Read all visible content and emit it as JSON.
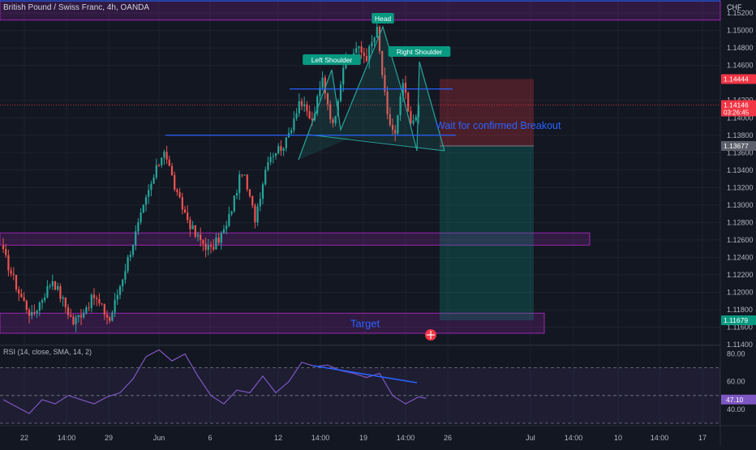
{
  "header": {
    "symbol": "British Pound / Swiss Franc, 4h, OANDA",
    "currency": "CHF",
    "rsi_label": "RSI (14, close, SMA, 14, 2)"
  },
  "colors": {
    "background": "#131722",
    "up": "#26a69a",
    "down": "#ef5350",
    "zone": "#9c27b0",
    "trendline": "#2962ff",
    "rsi": "#7e57c2",
    "pattern": "#26a69a",
    "stop_zone": "#f23645",
    "target_zone": "#089981"
  },
  "chart_data": [
    {
      "type": "candlestick",
      "x_ticks": [
        "22",
        "14:00",
        "29",
        "Jun",
        "6",
        "12",
        "14:00",
        "19",
        "14:00",
        "26",
        "Jul",
        "14:00",
        "10",
        "14:00",
        "17"
      ],
      "y_ticks": [
        "1.15200",
        "1.15000",
        "1.14800",
        "1.14600",
        "1.14200",
        "1.14000",
        "1.13800",
        "1.13600",
        "1.13400",
        "1.13200",
        "1.13000",
        "1.12800",
        "1.12600",
        "1.12400",
        "1.12200",
        "1.12000",
        "1.11800",
        "1.11600",
        "1.11400"
      ],
      "ylim": [
        1.114,
        1.1535
      ],
      "price_tags": [
        {
          "label": "1.14444",
          "value": 1.14444,
          "color": "#f23645"
        },
        {
          "label": "1.14146",
          "sublabel": "03:26:45",
          "value": 1.14146,
          "color": "#f23645"
        },
        {
          "label": "1.13677",
          "value": 1.13677,
          "color": "#5d606b"
        },
        {
          "label": "1.11679",
          "value": 1.11679,
          "color": "#089981"
        }
      ],
      "zones": [
        {
          "label": "",
          "from": 1.1512,
          "to": 1.1534
        },
        {
          "label": "",
          "from": 1.1254,
          "to": 1.1268
        },
        {
          "label": "Target",
          "from": 1.1153,
          "to": 1.1176
        }
      ],
      "pattern_labels": [
        "Head",
        "Left Shoulder",
        "Right Shoulder"
      ],
      "annotations": [
        "Wait for confirmed Breakout"
      ],
      "levels": [
        1.1433,
        1.138
      ],
      "position": {
        "entry": 1.13677,
        "stop": 1.14444,
        "target": 1.11679
      },
      "pivots": [
        {
          "x": 1,
          "y": 1.1245
        },
        {
          "x": 7,
          "y": 1.12
        },
        {
          "x": 12,
          "y": 1.1172
        },
        {
          "x": 20,
          "y": 1.1215
        },
        {
          "x": 28,
          "y": 1.1165
        },
        {
          "x": 36,
          "y": 1.1195
        },
        {
          "x": 42,
          "y": 1.1168
        },
        {
          "x": 50,
          "y": 1.1248
        },
        {
          "x": 57,
          "y": 1.1315
        },
        {
          "x": 63,
          "y": 1.1365
        },
        {
          "x": 68,
          "y": 1.131
        },
        {
          "x": 75,
          "y": 1.1265
        },
        {
          "x": 81,
          "y": 1.1248
        },
        {
          "x": 87,
          "y": 1.1275
        },
        {
          "x": 93,
          "y": 1.134
        },
        {
          "x": 98,
          "y": 1.1285
        },
        {
          "x": 103,
          "y": 1.1355
        },
        {
          "x": 110,
          "y": 1.1372
        },
        {
          "x": 115,
          "y": 1.142
        },
        {
          "x": 120,
          "y": 1.1395
        },
        {
          "x": 124,
          "y": 1.1445
        },
        {
          "x": 128,
          "y": 1.139
        },
        {
          "x": 132,
          "y": 1.146
        },
        {
          "x": 137,
          "y": 1.148
        },
        {
          "x": 141,
          "y": 1.147
        },
        {
          "x": 145,
          "y": 1.15
        },
        {
          "x": 149,
          "y": 1.14
        },
        {
          "x": 152,
          "y": 1.138
        },
        {
          "x": 155,
          "y": 1.144
        },
        {
          "x": 158,
          "y": 1.139
        },
        {
          "x": 161,
          "y": 1.1415
        }
      ]
    },
    {
      "type": "line",
      "series_name": "RSI",
      "value_label": "47.10",
      "y_ticks": [
        "80.00",
        "60.00",
        "40.00"
      ],
      "ylim": [
        30,
        85
      ],
      "levels": [
        70,
        50,
        30
      ],
      "points": [
        [
          0,
          47
        ],
        [
          5,
          42
        ],
        [
          10,
          37
        ],
        [
          15,
          47
        ],
        [
          20,
          44
        ],
        [
          25,
          50
        ],
        [
          30,
          47
        ],
        [
          35,
          44
        ],
        [
          40,
          49
        ],
        [
          45,
          52
        ],
        [
          50,
          62
        ],
        [
          55,
          78
        ],
        [
          60,
          83
        ],
        [
          65,
          75
        ],
        [
          70,
          80
        ],
        [
          75,
          64
        ],
        [
          80,
          50
        ],
        [
          85,
          44
        ],
        [
          90,
          54
        ],
        [
          95,
          52
        ],
        [
          100,
          64
        ],
        [
          105,
          52
        ],
        [
          110,
          60
        ],
        [
          115,
          74
        ],
        [
          120,
          71
        ],
        [
          125,
          72
        ],
        [
          130,
          68
        ],
        [
          135,
          66
        ],
        [
          140,
          63
        ],
        [
          145,
          66
        ],
        [
          150,
          50
        ],
        [
          155,
          44
        ],
        [
          160,
          49
        ],
        [
          163,
          48
        ]
      ]
    }
  ]
}
